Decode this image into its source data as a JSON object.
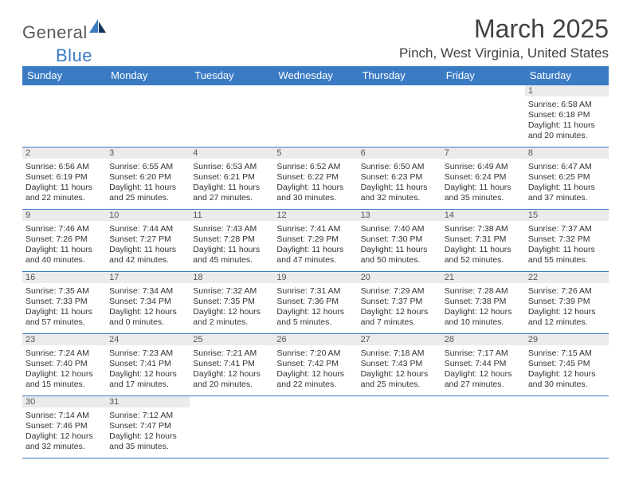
{
  "logo": {
    "text1": "General",
    "text2": "Blue"
  },
  "title": "March 2025",
  "location": "Pinch, West Virginia, United States",
  "colors": {
    "header_bg": "#3b7bc4",
    "header_fg": "#ffffff",
    "rule": "#3b7bc4",
    "daynum_bg": "#ebebeb",
    "text": "#333333",
    "page_bg": "#ffffff"
  },
  "days_of_week": [
    "Sunday",
    "Monday",
    "Tuesday",
    "Wednesday",
    "Thursday",
    "Friday",
    "Saturday"
  ],
  "calendar": {
    "first_weekday_index": 6,
    "num_days": 31,
    "cells": [
      {
        "n": 1,
        "sunrise": "6:58 AM",
        "sunset": "6:18 PM",
        "dl_h": 11,
        "dl_m": 20
      },
      {
        "n": 2,
        "sunrise": "6:56 AM",
        "sunset": "6:19 PM",
        "dl_h": 11,
        "dl_m": 22
      },
      {
        "n": 3,
        "sunrise": "6:55 AM",
        "sunset": "6:20 PM",
        "dl_h": 11,
        "dl_m": 25
      },
      {
        "n": 4,
        "sunrise": "6:53 AM",
        "sunset": "6:21 PM",
        "dl_h": 11,
        "dl_m": 27
      },
      {
        "n": 5,
        "sunrise": "6:52 AM",
        "sunset": "6:22 PM",
        "dl_h": 11,
        "dl_m": 30
      },
      {
        "n": 6,
        "sunrise": "6:50 AM",
        "sunset": "6:23 PM",
        "dl_h": 11,
        "dl_m": 32
      },
      {
        "n": 7,
        "sunrise": "6:49 AM",
        "sunset": "6:24 PM",
        "dl_h": 11,
        "dl_m": 35
      },
      {
        "n": 8,
        "sunrise": "6:47 AM",
        "sunset": "6:25 PM",
        "dl_h": 11,
        "dl_m": 37
      },
      {
        "n": 9,
        "sunrise": "7:46 AM",
        "sunset": "7:26 PM",
        "dl_h": 11,
        "dl_m": 40
      },
      {
        "n": 10,
        "sunrise": "7:44 AM",
        "sunset": "7:27 PM",
        "dl_h": 11,
        "dl_m": 42
      },
      {
        "n": 11,
        "sunrise": "7:43 AM",
        "sunset": "7:28 PM",
        "dl_h": 11,
        "dl_m": 45
      },
      {
        "n": 12,
        "sunrise": "7:41 AM",
        "sunset": "7:29 PM",
        "dl_h": 11,
        "dl_m": 47
      },
      {
        "n": 13,
        "sunrise": "7:40 AM",
        "sunset": "7:30 PM",
        "dl_h": 11,
        "dl_m": 50
      },
      {
        "n": 14,
        "sunrise": "7:38 AM",
        "sunset": "7:31 PM",
        "dl_h": 11,
        "dl_m": 52
      },
      {
        "n": 15,
        "sunrise": "7:37 AM",
        "sunset": "7:32 PM",
        "dl_h": 11,
        "dl_m": 55
      },
      {
        "n": 16,
        "sunrise": "7:35 AM",
        "sunset": "7:33 PM",
        "dl_h": 11,
        "dl_m": 57
      },
      {
        "n": 17,
        "sunrise": "7:34 AM",
        "sunset": "7:34 PM",
        "dl_h": 12,
        "dl_m": 0
      },
      {
        "n": 18,
        "sunrise": "7:32 AM",
        "sunset": "7:35 PM",
        "dl_h": 12,
        "dl_m": 2
      },
      {
        "n": 19,
        "sunrise": "7:31 AM",
        "sunset": "7:36 PM",
        "dl_h": 12,
        "dl_m": 5
      },
      {
        "n": 20,
        "sunrise": "7:29 AM",
        "sunset": "7:37 PM",
        "dl_h": 12,
        "dl_m": 7
      },
      {
        "n": 21,
        "sunrise": "7:28 AM",
        "sunset": "7:38 PM",
        "dl_h": 12,
        "dl_m": 10
      },
      {
        "n": 22,
        "sunrise": "7:26 AM",
        "sunset": "7:39 PM",
        "dl_h": 12,
        "dl_m": 12
      },
      {
        "n": 23,
        "sunrise": "7:24 AM",
        "sunset": "7:40 PM",
        "dl_h": 12,
        "dl_m": 15
      },
      {
        "n": 24,
        "sunrise": "7:23 AM",
        "sunset": "7:41 PM",
        "dl_h": 12,
        "dl_m": 17
      },
      {
        "n": 25,
        "sunrise": "7:21 AM",
        "sunset": "7:41 PM",
        "dl_h": 12,
        "dl_m": 20
      },
      {
        "n": 26,
        "sunrise": "7:20 AM",
        "sunset": "7:42 PM",
        "dl_h": 12,
        "dl_m": 22
      },
      {
        "n": 27,
        "sunrise": "7:18 AM",
        "sunset": "7:43 PM",
        "dl_h": 12,
        "dl_m": 25
      },
      {
        "n": 28,
        "sunrise": "7:17 AM",
        "sunset": "7:44 PM",
        "dl_h": 12,
        "dl_m": 27
      },
      {
        "n": 29,
        "sunrise": "7:15 AM",
        "sunset": "7:45 PM",
        "dl_h": 12,
        "dl_m": 30
      },
      {
        "n": 30,
        "sunrise": "7:14 AM",
        "sunset": "7:46 PM",
        "dl_h": 12,
        "dl_m": 32
      },
      {
        "n": 31,
        "sunrise": "7:12 AM",
        "sunset": "7:47 PM",
        "dl_h": 12,
        "dl_m": 35
      }
    ]
  },
  "labels": {
    "sunrise": "Sunrise:",
    "sunset": "Sunset:",
    "daylight_prefix": "Daylight:",
    "hours_word": "hours",
    "and_word": "and",
    "minutes_word": "minutes."
  }
}
